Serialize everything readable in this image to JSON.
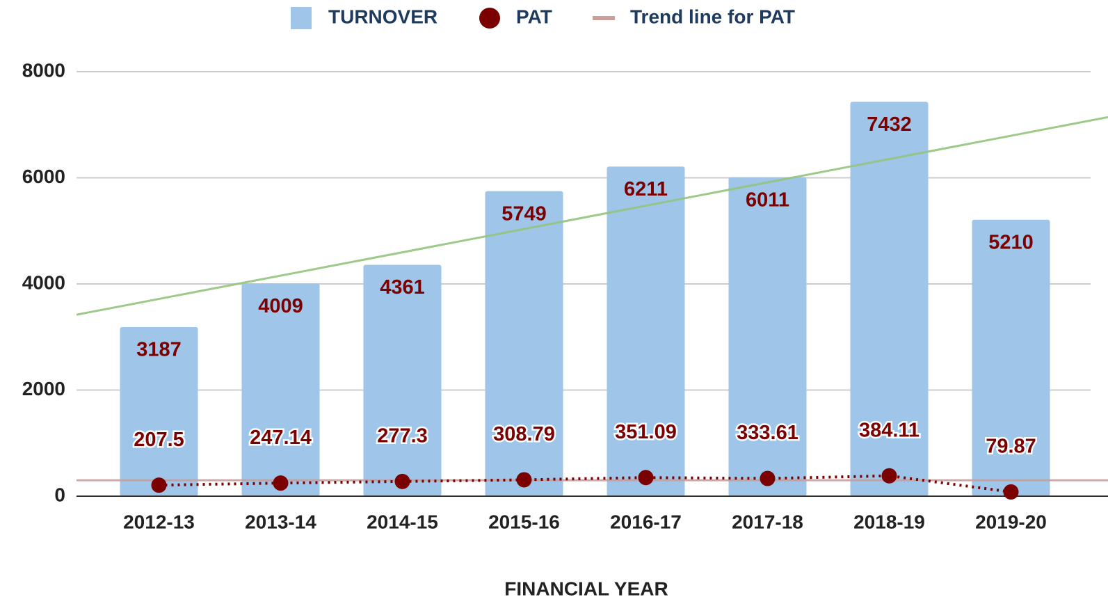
{
  "chart_data": {
    "type": "bar",
    "x_label": "FINANCIAL YEAR",
    "categories": [
      "2012-13",
      "2013-14",
      "2014-15",
      "2015-16",
      "2016-17",
      "2017-18",
      "2018-19",
      "2019-20"
    ],
    "series": [
      {
        "name": "TURNOVER",
        "color": "#9fc5e8",
        "type": "bar",
        "values": [
          3187,
          4009,
          4361,
          5749,
          6211,
          6011,
          7432,
          5210
        ]
      },
      {
        "name": "PAT",
        "color": "#7b0000",
        "type": "line",
        "values": [
          207.5,
          247.14,
          277.3,
          308.79,
          351.09,
          333.61,
          384.11,
          79.87
        ]
      }
    ],
    "trend_lines": [
      {
        "name": "Trend line for PAT",
        "color": "#c9a09c",
        "values": [
          300,
          300
        ]
      },
      {
        "color": "#93c47d",
        "values": [
          3420,
          7080
        ]
      }
    ],
    "ylim": [
      0,
      8000
    ],
    "yticks": [
      0,
      2000,
      4000,
      6000,
      8000
    ],
    "grid": true
  }
}
